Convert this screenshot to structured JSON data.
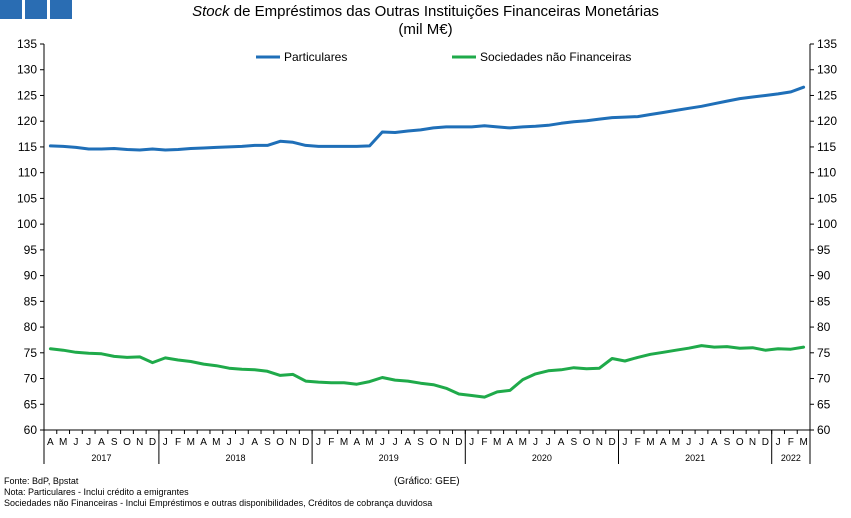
{
  "header": {
    "title_italic": "Stock",
    "title_rest": " de Empréstimos das Outras Instituições Financeiras Monetárias",
    "subtitle": "(mil M€)"
  },
  "colors": {
    "logo": "#2a6db3",
    "particulares": "#1f6fb8",
    "snf": "#1faa4a",
    "axis": "#000000"
  },
  "footer": {
    "source": "Fonte: BdP, Bpstat",
    "note1": "Nota: Particulares - Inclui crédito a emigrantes",
    "note2": "Sociedades não Financeiras - Inclui Empréstimos e outras disponibilidades, Créditos de cobrança duvidosa",
    "credit": "(Gráfico: GEE)"
  },
  "chart_data": {
    "type": "line",
    "title": "Stock de Empréstimos das Outras Instituições Financeiras Monetárias",
    "subtitle": "(mil M€)",
    "ylim": [
      60,
      135
    ],
    "yticks": [
      60,
      65,
      70,
      75,
      80,
      85,
      90,
      95,
      100,
      105,
      110,
      115,
      120,
      125,
      130,
      135
    ],
    "y_axes": "left and right",
    "grid": false,
    "legend_position": "top",
    "month_labels": [
      "A",
      "M",
      "J",
      "J",
      "A",
      "S",
      "O",
      "N",
      "D",
      "J",
      "F",
      "M",
      "A",
      "M",
      "J",
      "J",
      "A",
      "S",
      "O",
      "N",
      "D",
      "J",
      "F",
      "M",
      "A",
      "M",
      "J",
      "J",
      "A",
      "S",
      "O",
      "N",
      "D",
      "J",
      "F",
      "M",
      "A",
      "M",
      "J",
      "J",
      "A",
      "S",
      "O",
      "N",
      "D",
      "J",
      "F",
      "M",
      "A",
      "M",
      "J",
      "J",
      "A",
      "S",
      "O",
      "N",
      "D",
      "J",
      "F",
      "M"
    ],
    "years": [
      {
        "label": "2017",
        "start": 0,
        "end": 9
      },
      {
        "label": "2018",
        "start": 9,
        "end": 21
      },
      {
        "label": "2019",
        "start": 21,
        "end": 33
      },
      {
        "label": "2020",
        "start": 33,
        "end": 45
      },
      {
        "label": "2021",
        "start": 45,
        "end": 57
      },
      {
        "label": "2022",
        "start": 57,
        "end": 60
      }
    ],
    "series": [
      {
        "name": "Particulares",
        "color": "#1f6fb8",
        "values": [
          115.2,
          115.1,
          114.9,
          114.6,
          114.6,
          114.7,
          114.5,
          114.4,
          114.6,
          114.4,
          114.5,
          114.7,
          114.8,
          114.9,
          115.0,
          115.1,
          115.3,
          115.3,
          116.1,
          115.9,
          115.3,
          115.1,
          115.1,
          115.1,
          115.1,
          115.2,
          117.9,
          117.8,
          118.1,
          118.3,
          118.7,
          118.9,
          118.9,
          118.9,
          119.1,
          118.9,
          118.7,
          118.9,
          119.0,
          119.2,
          119.6,
          119.9,
          120.1,
          120.4,
          120.7,
          120.8,
          120.9,
          121.3,
          121.7,
          122.1,
          122.5,
          122.9,
          123.4,
          123.9,
          124.4,
          124.7,
          125.0,
          125.3,
          125.7,
          126.6
        ]
      },
      {
        "name": "Sociedades não Financeiras",
        "color": "#1faa4a",
        "values": [
          75.8,
          75.5,
          75.1,
          74.9,
          74.8,
          74.3,
          74.1,
          74.2,
          73.1,
          74.0,
          73.6,
          73.3,
          72.8,
          72.5,
          72.0,
          71.8,
          71.7,
          71.4,
          70.6,
          70.8,
          69.5,
          69.3,
          69.2,
          69.2,
          68.9,
          69.4,
          70.2,
          69.7,
          69.5,
          69.1,
          68.8,
          68.1,
          67.0,
          66.7,
          66.4,
          67.4,
          67.7,
          69.8,
          70.9,
          71.5,
          71.7,
          72.1,
          71.9,
          72.0,
          73.9,
          73.4,
          74.1,
          74.7,
          75.1,
          75.5,
          75.9,
          76.4,
          76.1,
          76.2,
          75.9,
          76.0,
          75.5,
          75.8,
          75.7,
          76.1
        ]
      }
    ]
  }
}
